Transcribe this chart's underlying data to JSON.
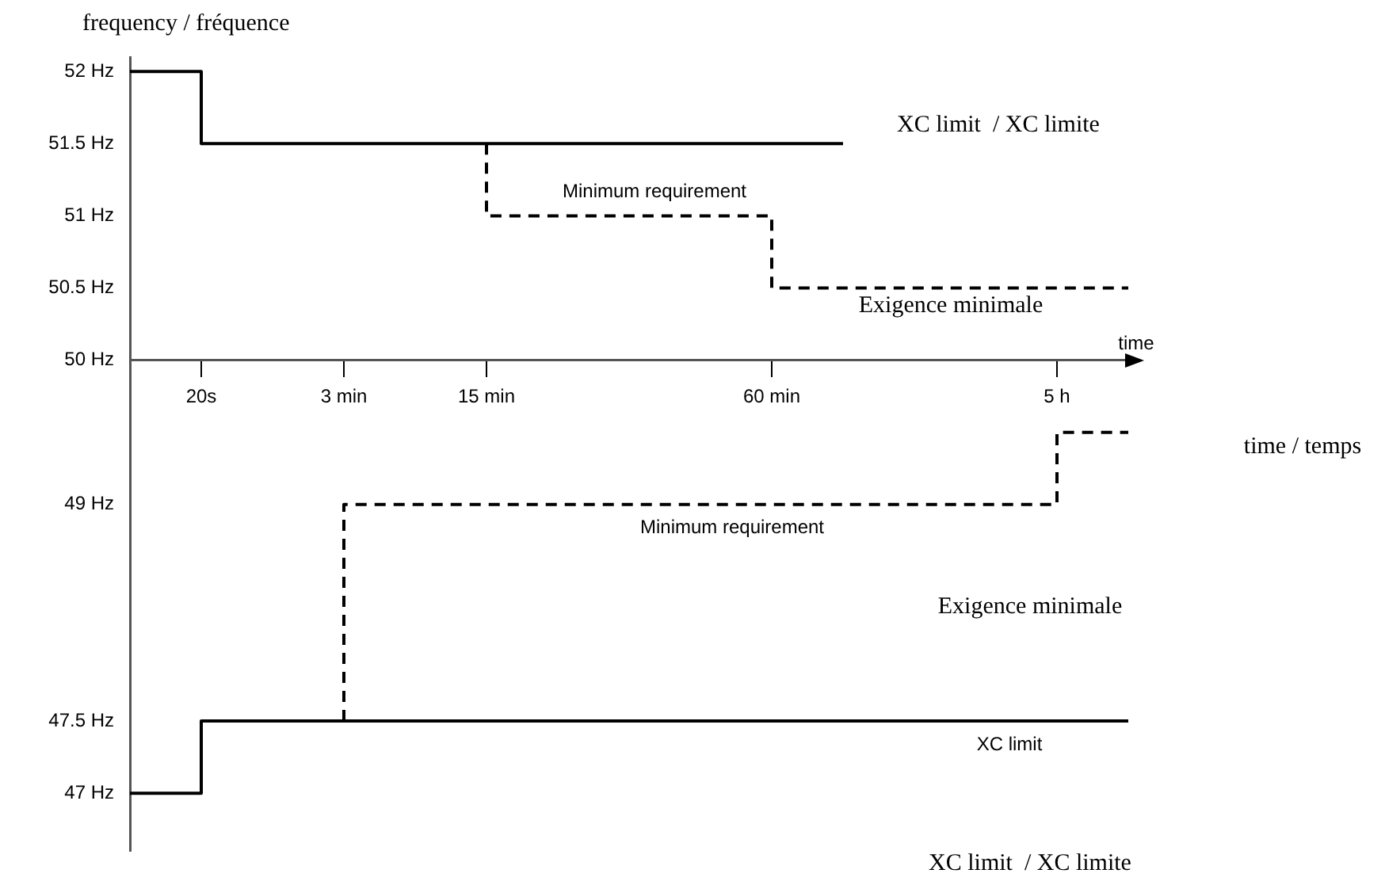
{
  "chart_data": {
    "type": "step",
    "ylabel": "frequency / fréquence",
    "xlabel": "time",
    "categories": [
      null,
      "20s",
      null,
      "3 min",
      null,
      "15 min",
      null,
      null,
      null,
      "60 min",
      null,
      null,
      null,
      "5 h",
      null
    ],
    "ylim": [
      46.6,
      52.1
    ],
    "yticks": [
      {
        "value": 47,
        "label": "47 Hz"
      },
      {
        "value": 47.5,
        "label": "47.5 Hz"
      },
      {
        "value": 49,
        "label": "49 Hz"
      },
      {
        "value": 50,
        "label": "50 Hz"
      },
      {
        "value": 50.5,
        "label": "50.5 Hz"
      },
      {
        "value": 51,
        "label": "51 Hz"
      },
      {
        "value": 51.5,
        "label": "51.5 Hz"
      },
      {
        "value": 52,
        "label": "52 Hz"
      }
    ],
    "series": [
      {
        "color": "#000000",
        "line_style": "solid",
        "values": [
          52,
          52,
          51.5,
          51.5,
          51.5,
          51.5,
          51.5,
          51.5,
          51.5,
          51.5,
          51.5,
          null,
          null,
          null,
          null
        ]
      },
      {
        "color": "#000000",
        "line_style": "dashed",
        "values": [
          null,
          null,
          null,
          null,
          null,
          51.5,
          51,
          51,
          51,
          51,
          50.5,
          50.5,
          50.5,
          50.5,
          50.5
        ]
      },
      {
        "color": "#000000",
        "line_style": "solid",
        "values": [
          47,
          47,
          47.5,
          47.5,
          47.5,
          47.5,
          47.5,
          47.5,
          47.5,
          47.5,
          47.5,
          47.5,
          47.5,
          47.5,
          47.5
        ]
      },
      {
        "color": "#000000",
        "line_style": "dashed",
        "values": [
          null,
          null,
          null,
          47.5,
          49,
          49,
          49,
          49,
          49,
          49,
          49,
          49,
          49,
          49,
          49.5
        ]
      }
    ],
    "annotations": [
      "XC limit  / XC limite",
      "Minimum requirement",
      "Exigence minimale",
      "Minimum requirement",
      "Exigence minimale",
      "XC limit",
      "time / temps",
      "XC limit  / XC limite"
    ],
    "marker": "none",
    "grid": false,
    "legend": false
  }
}
